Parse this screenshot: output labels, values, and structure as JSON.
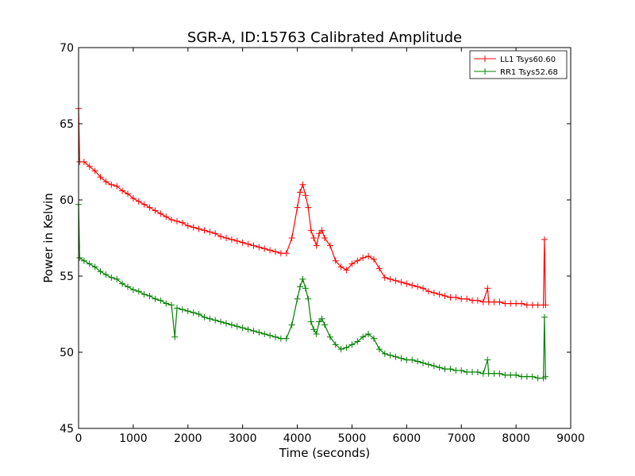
{
  "chart_data": {
    "type": "line",
    "title": "SGR-A, ID:15763 Calibrated Amplitude",
    "xlabel": "Time (seconds)",
    "ylabel": "Power in Kelvin",
    "xlim": [
      0,
      9000
    ],
    "ylim": [
      45,
      70
    ],
    "xticks": [
      0,
      1000,
      2000,
      3000,
      4000,
      5000,
      6000,
      7000,
      8000,
      9000
    ],
    "yticks": [
      45,
      50,
      55,
      60,
      65,
      70
    ],
    "grid": false,
    "legend_position": "top-right",
    "series": [
      {
        "name": "LL1 Tsys60.60",
        "color": "#ff0000",
        "marker": "plus",
        "points": [
          [
            0,
            66.0
          ],
          [
            20,
            62.5
          ],
          [
            100,
            62.5
          ],
          [
            200,
            62.2
          ],
          [
            300,
            61.9
          ],
          [
            400,
            61.5
          ],
          [
            500,
            61.2
          ],
          [
            600,
            61.0
          ],
          [
            700,
            60.9
          ],
          [
            800,
            60.6
          ],
          [
            900,
            60.4
          ],
          [
            1000,
            60.1
          ],
          [
            1100,
            59.9
          ],
          [
            1200,
            59.7
          ],
          [
            1300,
            59.5
          ],
          [
            1400,
            59.3
          ],
          [
            1500,
            59.1
          ],
          [
            1600,
            58.9
          ],
          [
            1700,
            58.7
          ],
          [
            1800,
            58.6
          ],
          [
            1900,
            58.5
          ],
          [
            2000,
            58.3
          ],
          [
            2100,
            58.2
          ],
          [
            2200,
            58.1
          ],
          [
            2300,
            58.0
          ],
          [
            2400,
            57.9
          ],
          [
            2500,
            57.8
          ],
          [
            2600,
            57.6
          ],
          [
            2700,
            57.5
          ],
          [
            2800,
            57.4
          ],
          [
            2900,
            57.3
          ],
          [
            3000,
            57.2
          ],
          [
            3100,
            57.1
          ],
          [
            3200,
            57.0
          ],
          [
            3300,
            56.9
          ],
          [
            3400,
            56.8
          ],
          [
            3500,
            56.7
          ],
          [
            3600,
            56.6
          ],
          [
            3700,
            56.5
          ],
          [
            3800,
            56.5
          ],
          [
            3900,
            57.5
          ],
          [
            4000,
            59.5
          ],
          [
            4050,
            60.5
          ],
          [
            4100,
            61.0
          ],
          [
            4150,
            60.3
          ],
          [
            4200,
            59.5
          ],
          [
            4250,
            58.0
          ],
          [
            4300,
            57.5
          ],
          [
            4350,
            57.0
          ],
          [
            4400,
            57.8
          ],
          [
            4450,
            58.0
          ],
          [
            4500,
            57.5
          ],
          [
            4600,
            57.0
          ],
          [
            4700,
            56.0
          ],
          [
            4800,
            55.6
          ],
          [
            4900,
            55.4
          ],
          [
            5000,
            55.8
          ],
          [
            5100,
            56.0
          ],
          [
            5200,
            56.2
          ],
          [
            5300,
            56.3
          ],
          [
            5400,
            56.1
          ],
          [
            5500,
            55.5
          ],
          [
            5600,
            54.9
          ],
          [
            5700,
            54.8
          ],
          [
            5800,
            54.7
          ],
          [
            5900,
            54.6
          ],
          [
            6000,
            54.5
          ],
          [
            6100,
            54.4
          ],
          [
            6200,
            54.3
          ],
          [
            6300,
            54.2
          ],
          [
            6400,
            54.0
          ],
          [
            6500,
            53.9
          ],
          [
            6600,
            53.8
          ],
          [
            6700,
            53.7
          ],
          [
            6800,
            53.6
          ],
          [
            6900,
            53.6
          ],
          [
            7000,
            53.5
          ],
          [
            7100,
            53.5
          ],
          [
            7200,
            53.4
          ],
          [
            7300,
            53.4
          ],
          [
            7400,
            53.3
          ],
          [
            7480,
            54.2
          ],
          [
            7500,
            53.3
          ],
          [
            7600,
            53.3
          ],
          [
            7700,
            53.3
          ],
          [
            7800,
            53.2
          ],
          [
            7900,
            53.2
          ],
          [
            8000,
            53.2
          ],
          [
            8100,
            53.2
          ],
          [
            8200,
            53.1
          ],
          [
            8300,
            53.1
          ],
          [
            8400,
            53.1
          ],
          [
            8500,
            53.1
          ],
          [
            8520,
            57.4
          ],
          [
            8540,
            53.1
          ]
        ]
      },
      {
        "name": "RR1 Tsys52.68",
        "color": "#008000",
        "marker": "plus",
        "points": [
          [
            0,
            59.7
          ],
          [
            20,
            56.2
          ],
          [
            100,
            56.0
          ],
          [
            200,
            55.8
          ],
          [
            300,
            55.6
          ],
          [
            400,
            55.3
          ],
          [
            500,
            55.1
          ],
          [
            600,
            54.9
          ],
          [
            700,
            54.8
          ],
          [
            800,
            54.5
          ],
          [
            900,
            54.3
          ],
          [
            1000,
            54.1
          ],
          [
            1100,
            54.0
          ],
          [
            1200,
            53.8
          ],
          [
            1300,
            53.7
          ],
          [
            1400,
            53.5
          ],
          [
            1500,
            53.4
          ],
          [
            1600,
            53.2
          ],
          [
            1700,
            53.1
          ],
          [
            1760,
            51.0
          ],
          [
            1800,
            52.9
          ],
          [
            1900,
            52.8
          ],
          [
            2000,
            52.7
          ],
          [
            2100,
            52.6
          ],
          [
            2200,
            52.5
          ],
          [
            2300,
            52.3
          ],
          [
            2400,
            52.2
          ],
          [
            2500,
            52.1
          ],
          [
            2600,
            52.0
          ],
          [
            2700,
            51.9
          ],
          [
            2800,
            51.8
          ],
          [
            2900,
            51.7
          ],
          [
            3000,
            51.6
          ],
          [
            3100,
            51.5
          ],
          [
            3200,
            51.4
          ],
          [
            3300,
            51.3
          ],
          [
            3400,
            51.2
          ],
          [
            3500,
            51.1
          ],
          [
            3600,
            51.0
          ],
          [
            3700,
            50.9
          ],
          [
            3800,
            50.9
          ],
          [
            3900,
            51.8
          ],
          [
            4000,
            53.5
          ],
          [
            4050,
            54.3
          ],
          [
            4100,
            54.8
          ],
          [
            4150,
            54.2
          ],
          [
            4200,
            53.5
          ],
          [
            4250,
            52.0
          ],
          [
            4300,
            51.5
          ],
          [
            4350,
            51.2
          ],
          [
            4400,
            52.0
          ],
          [
            4450,
            52.2
          ],
          [
            4500,
            51.8
          ],
          [
            4600,
            51.0
          ],
          [
            4700,
            50.5
          ],
          [
            4800,
            50.2
          ],
          [
            4900,
            50.3
          ],
          [
            5000,
            50.5
          ],
          [
            5100,
            50.7
          ],
          [
            5200,
            51.0
          ],
          [
            5300,
            51.2
          ],
          [
            5400,
            50.9
          ],
          [
            5500,
            50.2
          ],
          [
            5600,
            49.9
          ],
          [
            5700,
            49.8
          ],
          [
            5800,
            49.7
          ],
          [
            5900,
            49.6
          ],
          [
            6000,
            49.5
          ],
          [
            6100,
            49.5
          ],
          [
            6200,
            49.4
          ],
          [
            6300,
            49.3
          ],
          [
            6400,
            49.2
          ],
          [
            6500,
            49.1
          ],
          [
            6600,
            49.0
          ],
          [
            6700,
            48.9
          ],
          [
            6800,
            48.9
          ],
          [
            6900,
            48.8
          ],
          [
            7000,
            48.8
          ],
          [
            7100,
            48.7
          ],
          [
            7200,
            48.7
          ],
          [
            7300,
            48.7
          ],
          [
            7400,
            48.6
          ],
          [
            7480,
            49.5
          ],
          [
            7500,
            48.6
          ],
          [
            7600,
            48.6
          ],
          [
            7700,
            48.6
          ],
          [
            7800,
            48.5
          ],
          [
            7900,
            48.5
          ],
          [
            8000,
            48.5
          ],
          [
            8100,
            48.4
          ],
          [
            8200,
            48.4
          ],
          [
            8300,
            48.4
          ],
          [
            8400,
            48.3
          ],
          [
            8500,
            48.3
          ],
          [
            8520,
            52.3
          ],
          [
            8540,
            48.4
          ]
        ]
      }
    ]
  }
}
